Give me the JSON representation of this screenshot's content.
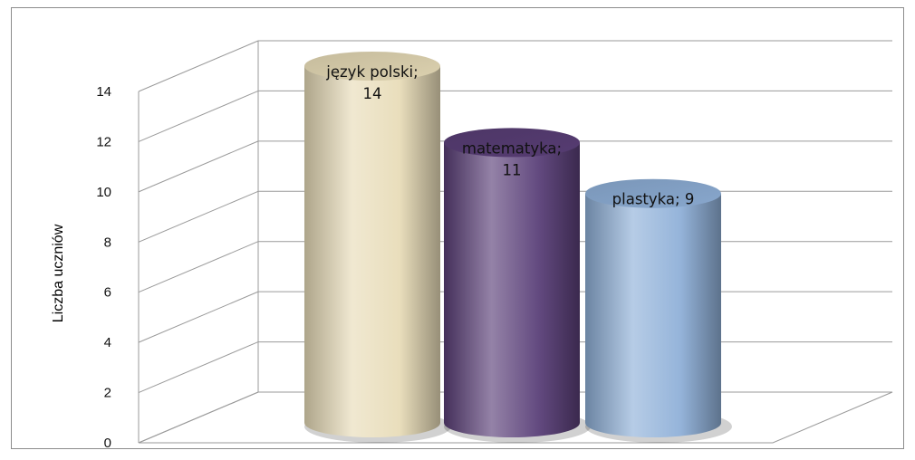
{
  "chart_data": {
    "type": "bar",
    "style": "3d-cylinder",
    "categories": [
      "język polski",
      "matematyka",
      "plastyka"
    ],
    "values": [
      14,
      11,
      9
    ],
    "data_labels": [
      [
        "język polski;",
        "14"
      ],
      [
        "matematyka;",
        "11"
      ],
      [
        "plastyka; 9"
      ]
    ],
    "title": "",
    "xlabel": "",
    "ylabel": "Liczba uczniów",
    "ylim": [
      0,
      14
    ],
    "yticks": [
      0,
      2,
      4,
      6,
      8,
      10,
      12,
      14
    ],
    "grid": true,
    "legend": "none",
    "colors": [
      "#e8dcb8",
      "#5a3f78",
      "#8fb0d8"
    ]
  }
}
